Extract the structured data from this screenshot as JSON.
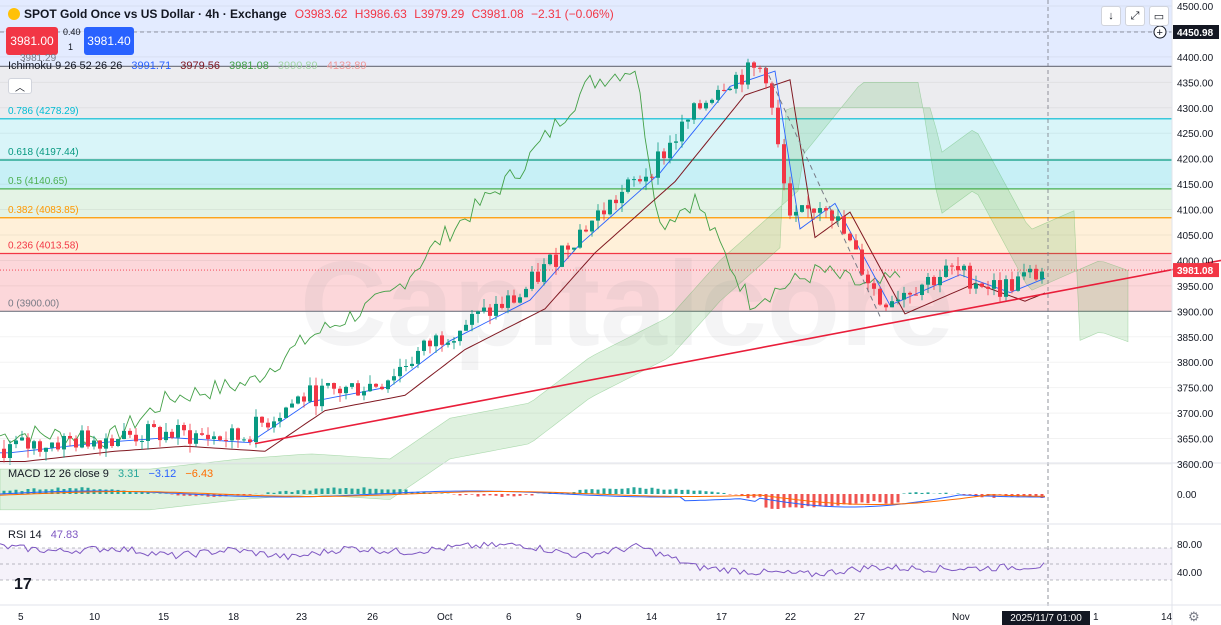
{
  "header": {
    "symbol": "SPOT Gold Once vs US Dollar · 4h · Exchange",
    "ohlc": {
      "o": "O3983.62",
      "h": "H3986.63",
      "l": "L3979.29",
      "c": "C3981.08",
      "chg": "−2.31 (−0.06%)"
    },
    "sell_price": "3981.00",
    "spread": "0.40",
    "qty": "1",
    "buy_price": "3981.40",
    "prev_close_label": "3981.29"
  },
  "indicators": {
    "ichimoku": {
      "label": "Ichimoku 9 26 52 26 26",
      "v1": "3991.71",
      "v2": "3979.56",
      "v3": "3981.08",
      "v4": "3990.89",
      "v5": "4133.89"
    },
    "macd": {
      "label": "MACD 12 26 close 9",
      "v1": "3.31",
      "v2": "−3.12",
      "v3": "−6.43"
    },
    "rsi": {
      "label": "RSI 14",
      "v1": "47.83"
    }
  },
  "colors": {
    "up": "#089981",
    "down": "#f23645",
    "macd": "#2962ff",
    "signal": "#ff6d00",
    "rsi": "#7e57c2",
    "ichi_conv": "#2962ff",
    "ichi_base": "#801922",
    "ichi_lag": "#43a047",
    "trend": "#e91e3a"
  },
  "fib_levels": [
    {
      "ratio": "1",
      "label": "1 (4381.29)",
      "value": 4381.29,
      "color": "#787b86",
      "fill": "rgba(180,180,190,0.25)"
    },
    {
      "ratio": "0.786",
      "label": "0.786 (4278.29)",
      "value": 4278.29,
      "color": "#00bcd4",
      "fill": "rgba(0,188,212,0.15)"
    },
    {
      "ratio": "0.618",
      "label": "0.618 (4197.44)",
      "value": 4197.44,
      "color": "#089981",
      "fill": "rgba(0,188,212,0.22)"
    },
    {
      "ratio": "0.5",
      "label": "0.5 (4140.65)",
      "value": 4140.65,
      "color": "#4caf50",
      "fill": "rgba(76,175,80,0.15)"
    },
    {
      "ratio": "0.382",
      "label": "0.382 (4083.85)",
      "value": 4083.85,
      "color": "#ff9800",
      "fill": "rgba(255,152,0,0.15)"
    },
    {
      "ratio": "0.236",
      "label": "0.236 (4013.58)",
      "value": 4013.58,
      "color": "#f23645",
      "fill": "rgba(242,54,69,0.2)"
    },
    {
      "ratio": "0",
      "label": "0 (3900.00)",
      "value": 3900.0,
      "color": "#787b86",
      "fill": ""
    }
  ],
  "chart_data": {
    "type": "line",
    "title": "SPOT Gold Once vs US Dollar · 4h · Exchange",
    "price_axis": {
      "ticks": [
        4500,
        4450,
        4400,
        4350,
        4300,
        4250,
        4200,
        4150,
        4100,
        4050,
        4000,
        3950,
        3900,
        3850,
        3800,
        3750,
        3700,
        3650,
        3600
      ],
      "range": [
        3600,
        4500
      ],
      "tick_label_format": "0.00"
    },
    "current_price": "3981.08",
    "crosshair_price": "4450.98",
    "time_axis": {
      "ticks": [
        "5",
        "10",
        "15",
        "18",
        "23",
        "26",
        "Oct",
        "6",
        "9",
        "14",
        "17",
        "22",
        "27",
        "Nov",
        "1",
        "14"
      ],
      "cursor_label": "2025/11/7   01:00"
    },
    "close_series": {
      "x": [
        "Sep 3",
        "Sep 8",
        "Sep 12",
        "Sep 17",
        "Sep 22",
        "Sep 26",
        "Oct 1",
        "Oct 6",
        "Oct 9",
        "Oct 14",
        "Oct 17",
        "Oct 20",
        "Oct 22",
        "Oct 24",
        "Oct 28",
        "Oct 30",
        "Nov 4",
        "Nov 7"
      ],
      "y": [
        3630,
        3650,
        3660,
        3650,
        3730,
        3760,
        3850,
        3930,
        4040,
        4180,
        4350,
        4380,
        4070,
        4120,
        3920,
        3980,
        3945,
        3981
      ]
    },
    "trendline": {
      "from": [
        "Sep 18",
        3640
      ],
      "to": [
        "Nov 14",
        4000
      ]
    },
    "macd_axis": {
      "ticks": [
        "0.00"
      ]
    },
    "rsi_axis": {
      "ticks": [
        "80.00",
        "40.00"
      ],
      "levels": [
        70,
        50,
        30
      ]
    },
    "rsi_series": {
      "y": [
        72,
        66,
        70,
        60,
        68,
        58,
        70,
        65,
        72,
        74,
        60,
        72,
        46,
        40,
        37,
        46,
        44,
        45,
        47.8
      ]
    }
  },
  "top_buttons": {
    "down_arrow": "↓",
    "expand": "⤢",
    "window": "▭"
  },
  "settings_icon": "⚙"
}
